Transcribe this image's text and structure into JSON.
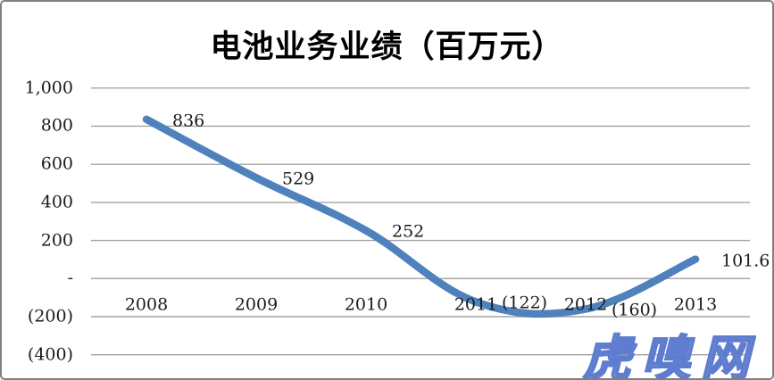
{
  "title": "电池业务业绩（百万元）",
  "watermark": {
    "text": "虎嗅网"
  },
  "colors": {
    "line": "#4F81BD",
    "gridline": "#A3A3A3",
    "label_text": "#1a1a1a",
    "title_text": "#000000",
    "watermark_fill": "#98ACE2",
    "watermark_stroke": "#5F7DD0",
    "frame_border": "#808080"
  },
  "chart_data": {
    "type": "line",
    "title": "电池业务业绩（百万元）",
    "categories": [
      "2008",
      "2009",
      "2010",
      "2011",
      "2012",
      "2013"
    ],
    "values": [
      836,
      529,
      252,
      -122,
      -160,
      101.6
    ],
    "data_labels": [
      "836",
      "529",
      "252",
      "(122)",
      "(160)",
      "101.6"
    ],
    "series_name": "电池业务业绩",
    "xlabel": "",
    "ylabel": "",
    "ylim": [
      -400,
      1000
    ],
    "ytick_interval": 200,
    "ytick_labels_bottom_to_top": [
      "(400)",
      "(200)",
      "-",
      "200",
      "400",
      "600",
      "800",
      "1,000"
    ],
    "grid": true,
    "legend_position": "none",
    "line_smoothing": true,
    "marker": "none"
  }
}
